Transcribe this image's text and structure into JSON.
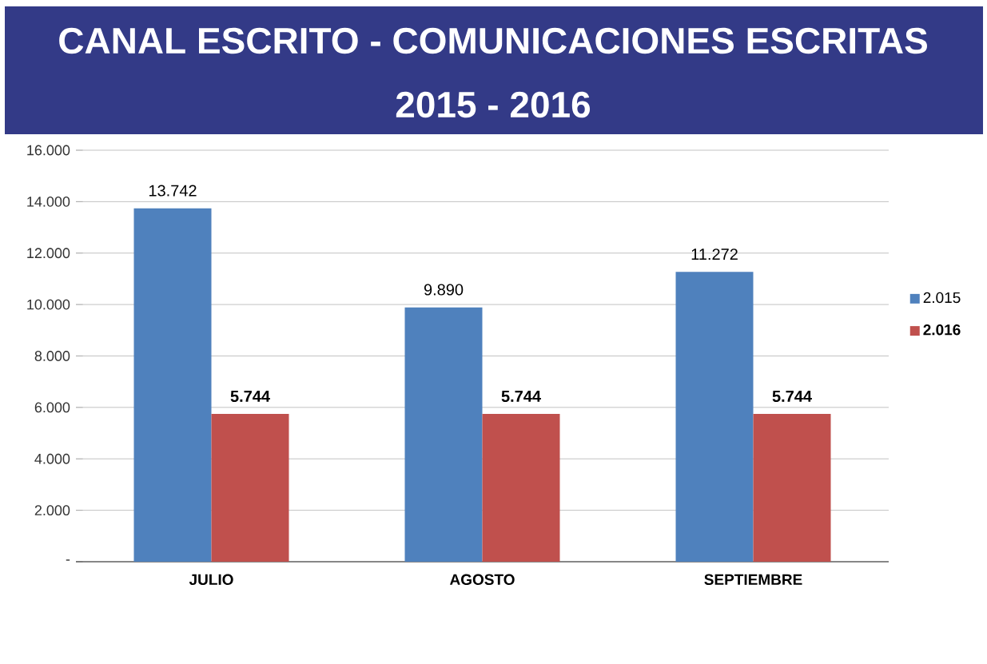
{
  "chart_data": {
    "type": "bar",
    "title": "CANAL ESCRITO - COMUNICACIONES ESCRITAS",
    "subtitle": "2015 - 2016",
    "categories": [
      "JULIO",
      "AGOSTO",
      "SEPTIEMBRE"
    ],
    "series": [
      {
        "name": "2.015",
        "color": "#4f81bd",
        "values": [
          13742,
          9890,
          11272
        ],
        "value_labels": [
          "13.742",
          "9.890",
          "11.272"
        ]
      },
      {
        "name": "2.016",
        "color": "#c0504d",
        "values": [
          5744,
          5744,
          5744
        ],
        "value_labels": [
          "5.744",
          "5.744",
          "5.744"
        ]
      }
    ],
    "ylim": [
      0,
      16000
    ],
    "yticks": [
      {
        "value": 0,
        "label": "-"
      },
      {
        "value": 2000,
        "label": "2.000"
      },
      {
        "value": 4000,
        "label": "4.000"
      },
      {
        "value": 6000,
        "label": "6.000"
      },
      {
        "value": 8000,
        "label": "8.000"
      },
      {
        "value": 10000,
        "label": "10.000"
      },
      {
        "value": 12000,
        "label": "12.000"
      },
      {
        "value": 14000,
        "label": "14.000"
      },
      {
        "value": 16000,
        "label": "16.000"
      }
    ],
    "grid": "y",
    "legend": "right"
  }
}
